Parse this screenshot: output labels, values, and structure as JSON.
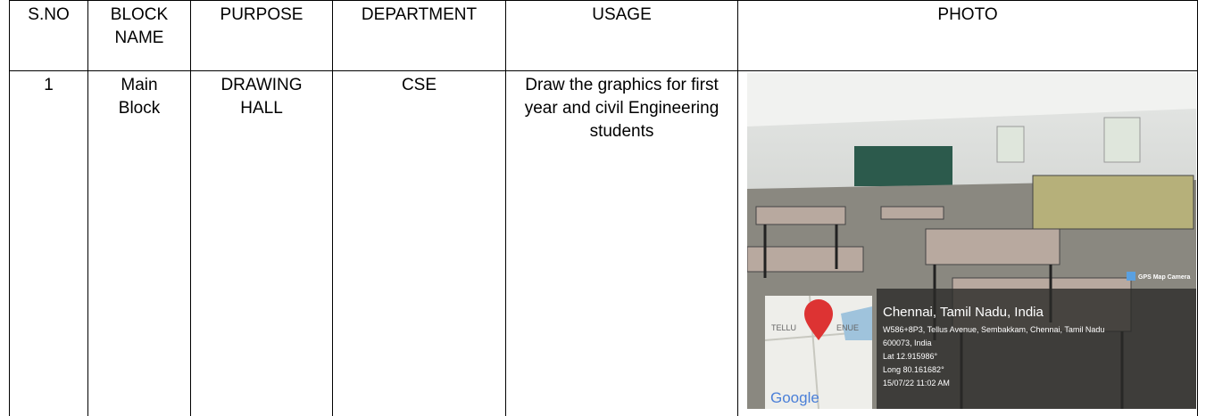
{
  "table": {
    "header": [
      "S.NO",
      "BLOCK NAME",
      "PURPOSE",
      "DEPARTMENT",
      "USAGE",
      "PHOTO"
    ],
    "rows": [
      [
        "1",
        "Main Block",
        "DRAWING HALL",
        "CSE",
        "Draw the graphics for first year and civil Engineering students"
      ]
    ]
  },
  "photo": {
    "app_label": "GPS Map Camera",
    "map_labels": [
      "TELLU",
      "ENUE"
    ],
    "map_brand": "Google",
    "place": "Chennai, Tamil Nadu, India",
    "address": [
      "W586+8P3, Tellus Avenue, Sembakkam, Chennai, Tamil Nadu",
      "600073, India"
    ],
    "lat": "Lat 12.915986°",
    "long": "Long 80.161682°",
    "timestamp": "15/07/22 11:02 AM"
  }
}
